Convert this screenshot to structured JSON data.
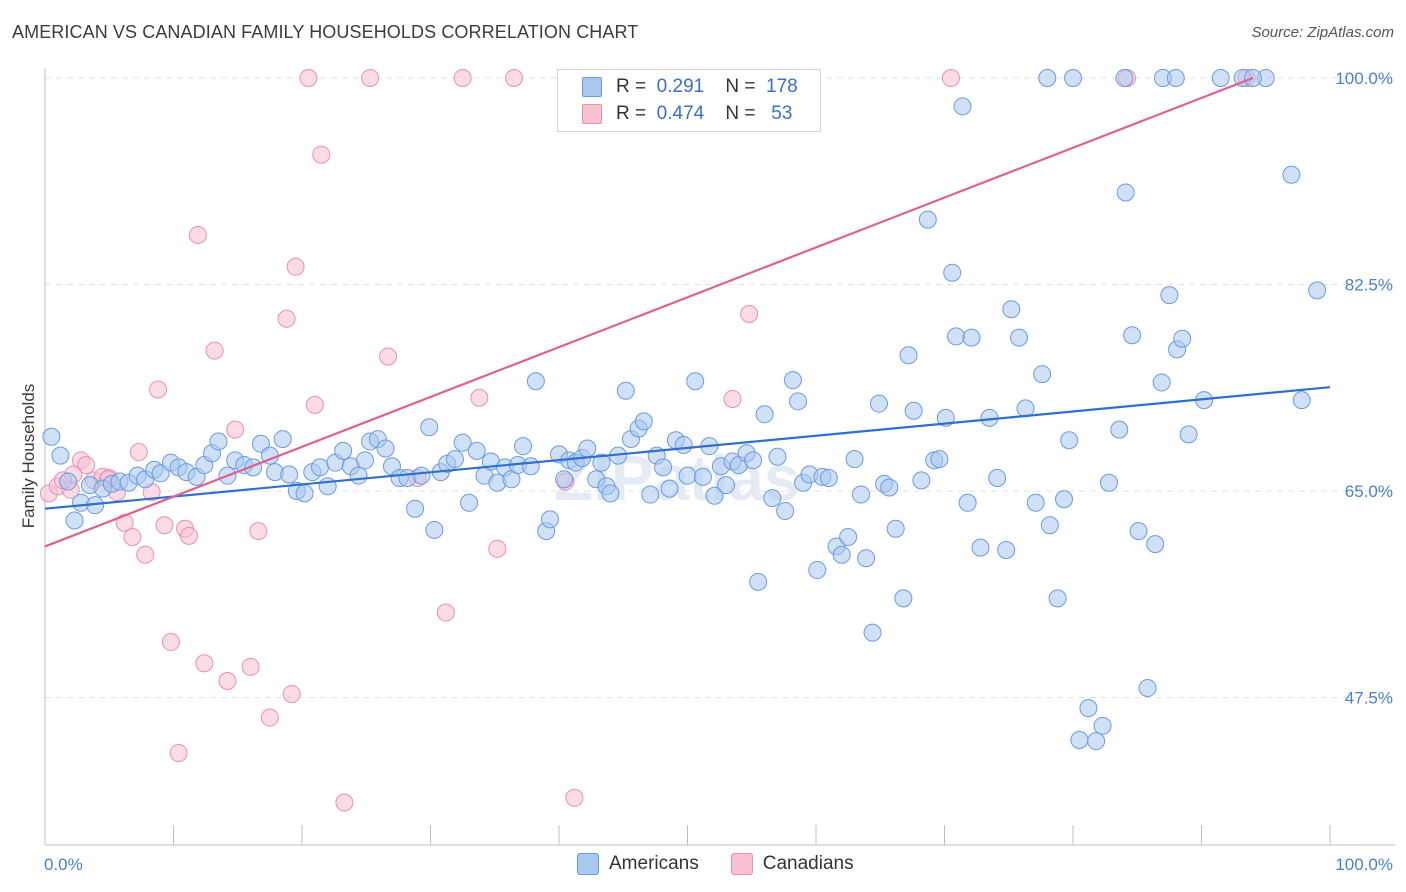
{
  "title": "AMERICAN VS CANADIAN FAMILY HOUSEHOLDS CORRELATION CHART",
  "source": "Source: ZipAtlas.com",
  "watermark": "ZIPatlas",
  "colors": {
    "americans_fill": "#a9c8f0",
    "americans_stroke": "#6a9be0",
    "americans_line": "#2f6fcf",
    "canadians_fill": "#f8c0d2",
    "canadians_stroke": "#eb8fb0",
    "canadians_line": "#e0608c",
    "tick_text": "#4a7fd0",
    "grid": "#e2e2e2"
  },
  "legend": {
    "rows": [
      {
        "r_label": "R =",
        "r_value": "0.291",
        "n_label": "N =",
        "n_value": "178"
      },
      {
        "r_label": "R =",
        "r_value": "0.474",
        "n_label": "N =",
        "n_value": "53"
      }
    ],
    "bottom": [
      "Americans",
      "Canadians"
    ]
  },
  "chart_data": {
    "type": "scatter",
    "xlabel": "",
    "ylabel": "Family Households",
    "xlim": [
      0,
      100
    ],
    "ylim": [
      35,
      100
    ],
    "x_tick_labels": [
      "0.0%",
      "100.0%"
    ],
    "y_tick_labels": [
      "100.0%",
      "82.5%",
      "65.0%",
      "47.5%"
    ],
    "y_tick_values": [
      100,
      82.5,
      65,
      47.5
    ],
    "grid": true,
    "legend_position": "top-center",
    "series": [
      {
        "name": "Americans",
        "r": 0.291,
        "n": 178,
        "trend": {
          "x0": 0,
          "y0": 63.5,
          "x1": 100,
          "y1": 73.8
        },
        "points": [
          [
            0.5,
            69.6
          ],
          [
            1.2,
            68.0
          ],
          [
            1.8,
            65.8
          ],
          [
            2.3,
            62.5
          ],
          [
            2.8,
            64.0
          ],
          [
            3.5,
            65.5
          ],
          [
            3.9,
            63.8
          ],
          [
            4.5,
            65.2
          ],
          [
            5.2,
            65.6
          ],
          [
            5.8,
            65.8
          ],
          [
            6.5,
            65.7
          ],
          [
            7.2,
            66.3
          ],
          [
            7.8,
            66.0
          ],
          [
            8.5,
            66.8
          ],
          [
            9.0,
            66.5
          ],
          [
            9.8,
            67.4
          ],
          [
            10.4,
            67.0
          ],
          [
            11.0,
            66.6
          ],
          [
            11.8,
            66.2
          ],
          [
            12.4,
            67.2
          ],
          [
            13.0,
            68.2
          ],
          [
            13.5,
            69.2
          ],
          [
            14.2,
            66.3
          ],
          [
            14.8,
            67.6
          ],
          [
            15.5,
            67.2
          ],
          [
            16.2,
            67.0
          ],
          [
            16.8,
            69.0
          ],
          [
            17.5,
            68.0
          ],
          [
            17.9,
            66.6
          ],
          [
            18.5,
            69.4
          ],
          [
            19.0,
            66.4
          ],
          [
            19.6,
            65.0
          ],
          [
            20.2,
            64.8
          ],
          [
            20.8,
            66.6
          ],
          [
            21.4,
            67.0
          ],
          [
            22.0,
            65.4
          ],
          [
            22.6,
            67.4
          ],
          [
            23.2,
            68.4
          ],
          [
            23.8,
            67.1
          ],
          [
            24.4,
            66.3
          ],
          [
            24.9,
            67.6
          ],
          [
            25.3,
            69.2
          ],
          [
            25.9,
            69.4
          ],
          [
            26.5,
            68.6
          ],
          [
            27.0,
            67.1
          ],
          [
            27.6,
            66.1
          ],
          [
            28.2,
            66.1
          ],
          [
            28.8,
            63.5
          ],
          [
            29.3,
            66.3
          ],
          [
            29.9,
            70.4
          ],
          [
            30.3,
            61.7
          ],
          [
            30.8,
            66.6
          ],
          [
            31.3,
            67.3
          ],
          [
            31.9,
            67.7
          ],
          [
            32.5,
            69.1
          ],
          [
            33.0,
            64.0
          ],
          [
            33.6,
            68.4
          ],
          [
            34.2,
            66.3
          ],
          [
            34.7,
            67.5
          ],
          [
            35.2,
            65.7
          ],
          [
            35.8,
            67.0
          ],
          [
            36.3,
            66.0
          ],
          [
            36.8,
            67.2
          ],
          [
            37.2,
            68.8
          ],
          [
            37.8,
            67.1
          ],
          [
            38.2,
            74.3
          ],
          [
            39.0,
            61.6
          ],
          [
            39.3,
            62.6
          ],
          [
            40.0,
            68.1
          ],
          [
            40.4,
            66.0
          ],
          [
            40.8,
            67.6
          ],
          [
            41.3,
            67.4
          ],
          [
            41.8,
            67.8
          ],
          [
            42.2,
            68.6
          ],
          [
            42.9,
            66.0
          ],
          [
            43.3,
            67.4
          ],
          [
            43.7,
            65.4
          ],
          [
            44.0,
            64.8
          ],
          [
            44.6,
            68.0
          ],
          [
            45.2,
            73.5
          ],
          [
            45.6,
            69.4
          ],
          [
            46.2,
            70.3
          ],
          [
            46.6,
            70.9
          ],
          [
            47.1,
            64.7
          ],
          [
            47.6,
            68.0
          ],
          [
            48.1,
            67.0
          ],
          [
            48.6,
            65.2
          ],
          [
            49.1,
            69.3
          ],
          [
            49.7,
            68.9
          ],
          [
            50.0,
            66.3
          ],
          [
            50.6,
            74.3
          ],
          [
            51.2,
            66.2
          ],
          [
            51.7,
            68.8
          ],
          [
            52.1,
            64.6
          ],
          [
            52.6,
            67.1
          ],
          [
            53.0,
            65.5
          ],
          [
            53.5,
            67.5
          ],
          [
            54.0,
            67.2
          ],
          [
            54.6,
            68.2
          ],
          [
            55.1,
            67.6
          ],
          [
            55.5,
            57.3
          ],
          [
            56.0,
            71.5
          ],
          [
            56.6,
            64.4
          ],
          [
            57.0,
            67.9
          ],
          [
            57.6,
            63.3
          ],
          [
            58.2,
            74.4
          ],
          [
            58.6,
            72.6
          ],
          [
            59.0,
            65.7
          ],
          [
            59.5,
            66.4
          ],
          [
            60.1,
            58.3
          ],
          [
            60.5,
            66.2
          ],
          [
            61.0,
            66.1
          ],
          [
            61.6,
            60.3
          ],
          [
            62.0,
            59.6
          ],
          [
            62.5,
            61.1
          ],
          [
            63.0,
            67.7
          ],
          [
            63.5,
            64.7
          ],
          [
            63.9,
            59.3
          ],
          [
            64.4,
            53.0
          ],
          [
            64.9,
            72.4
          ],
          [
            65.3,
            65.6
          ],
          [
            65.7,
            65.3
          ],
          [
            66.2,
            61.8
          ],
          [
            66.8,
            55.9
          ],
          [
            67.2,
            76.5
          ],
          [
            67.6,
            71.8
          ],
          [
            68.2,
            65.9
          ],
          [
            68.7,
            88.0
          ],
          [
            69.2,
            67.6
          ],
          [
            69.6,
            67.7
          ],
          [
            70.1,
            71.2
          ],
          [
            70.6,
            83.5
          ],
          [
            70.9,
            78.1
          ],
          [
            71.4,
            97.6
          ],
          [
            71.8,
            64.0
          ],
          [
            72.1,
            78.0
          ],
          [
            72.8,
            60.2
          ],
          [
            73.5,
            71.2
          ],
          [
            74.1,
            66.1
          ],
          [
            74.8,
            60.0
          ],
          [
            75.2,
            80.4
          ],
          [
            75.8,
            78.0
          ],
          [
            76.3,
            72.0
          ],
          [
            77.1,
            64.0
          ],
          [
            77.6,
            74.9
          ],
          [
            78.2,
            62.1
          ],
          [
            78.8,
            55.9
          ],
          [
            79.3,
            64.3
          ],
          [
            79.7,
            69.3
          ],
          [
            80.5,
            43.9
          ],
          [
            81.2,
            46.6
          ],
          [
            81.8,
            43.8
          ],
          [
            82.3,
            45.1
          ],
          [
            82.8,
            65.7
          ],
          [
            83.6,
            70.2
          ],
          [
            84.1,
            90.3
          ],
          [
            84.6,
            78.2
          ],
          [
            85.1,
            61.6
          ],
          [
            85.8,
            48.3
          ],
          [
            86.4,
            60.5
          ],
          [
            86.9,
            74.2
          ],
          [
            87.5,
            81.6
          ],
          [
            88.1,
            77.0
          ],
          [
            88.5,
            77.9
          ],
          [
            89.0,
            69.8
          ],
          [
            90.2,
            72.7
          ],
          [
            91.5,
            100.0
          ],
          [
            93.2,
            100.0
          ],
          [
            95.0,
            100.0
          ],
          [
            97.0,
            91.8
          ],
          [
            97.8,
            72.7
          ],
          [
            99.0,
            82.0
          ],
          [
            80.0,
            100.0
          ],
          [
            84.0,
            100.0
          ],
          [
            94.0,
            100.0
          ],
          [
            87.0,
            100.0
          ],
          [
            78.0,
            100.0
          ],
          [
            88.0,
            100.0
          ]
        ]
      },
      {
        "name": "Canadians",
        "r": 0.474,
        "n": 53,
        "trend": {
          "x0": 0,
          "y0": 60.3,
          "x1": 94,
          "y1": 100.0
        },
        "points": [
          [
            0.3,
            64.8
          ],
          [
            1.0,
            65.4
          ],
          [
            2.0,
            65.1
          ],
          [
            2.8,
            67.6
          ],
          [
            3.2,
            67.2
          ],
          [
            3.8,
            65.9
          ],
          [
            4.5,
            66.2
          ],
          [
            5.0,
            66.1
          ],
          [
            5.6,
            64.9
          ],
          [
            6.2,
            62.3
          ],
          [
            6.8,
            61.1
          ],
          [
            7.3,
            68.3
          ],
          [
            7.8,
            59.6
          ],
          [
            8.3,
            64.9
          ],
          [
            8.8,
            73.6
          ],
          [
            9.3,
            62.1
          ],
          [
            9.8,
            52.2
          ],
          [
            10.4,
            42.8
          ],
          [
            10.9,
            61.8
          ],
          [
            11.2,
            61.2
          ],
          [
            11.9,
            86.7
          ],
          [
            12.4,
            50.4
          ],
          [
            13.2,
            76.9
          ],
          [
            14.2,
            48.9
          ],
          [
            14.8,
            70.2
          ],
          [
            16.0,
            50.1
          ],
          [
            16.6,
            61.6
          ],
          [
            17.5,
            45.8
          ],
          [
            18.8,
            79.6
          ],
          [
            19.2,
            47.8
          ],
          [
            19.5,
            84.0
          ],
          [
            20.5,
            100.0
          ],
          [
            21.0,
            72.3
          ],
          [
            21.5,
            93.5
          ],
          [
            23.3,
            38.6
          ],
          [
            25.3,
            100.0
          ],
          [
            26.7,
            76.4
          ],
          [
            29.0,
            66.1
          ],
          [
            31.2,
            54.7
          ],
          [
            32.5,
            100.0
          ],
          [
            33.8,
            72.9
          ],
          [
            35.2,
            60.1
          ],
          [
            36.5,
            100.0
          ],
          [
            40.5,
            65.8
          ],
          [
            41.2,
            39.0
          ],
          [
            53.5,
            72.8
          ],
          [
            54.8,
            80.0
          ],
          [
            70.5,
            100.0
          ],
          [
            84.2,
            100.0
          ],
          [
            93.5,
            100.0
          ],
          [
            2.2,
            66.4
          ],
          [
            4.9,
            66.0
          ],
          [
            1.4,
            65.9
          ]
        ]
      }
    ]
  }
}
